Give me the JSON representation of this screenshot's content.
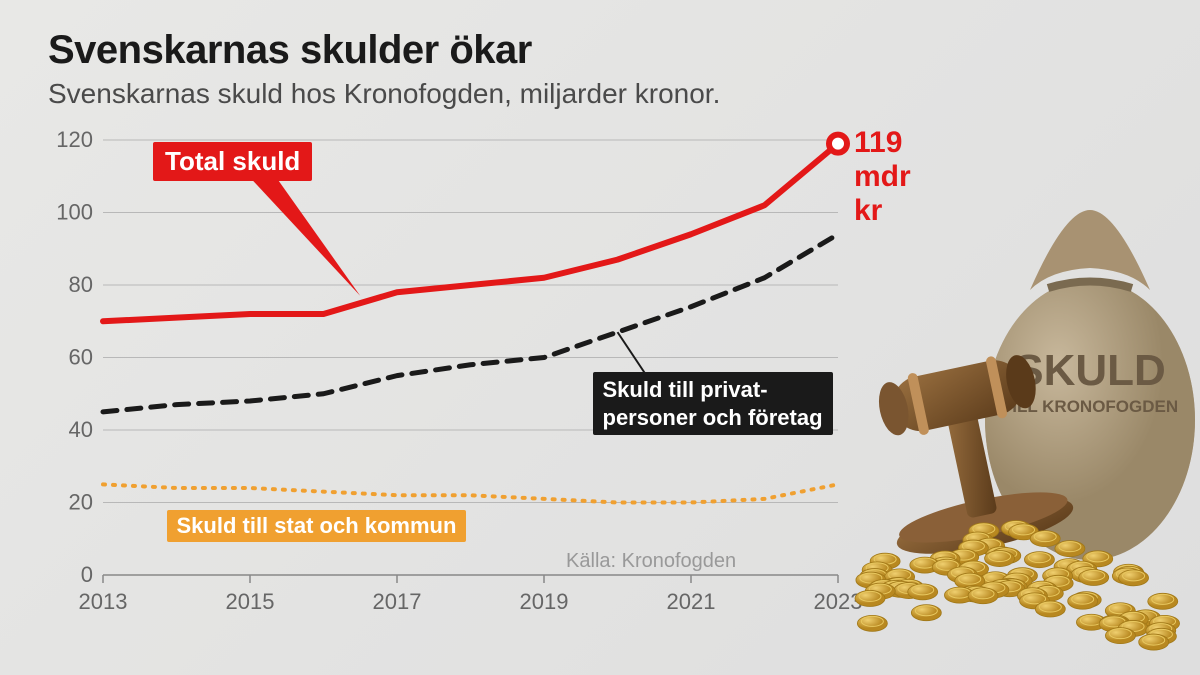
{
  "title": "Svenskarnas skulder ökar",
  "subtitle": "Svenskarnas skuld hos Kronofogden, miljarder kronor.",
  "source": "Källa: Kronofogden",
  "chart": {
    "type": "line",
    "xlim": [
      2013,
      2023
    ],
    "ylim": [
      0,
      120
    ],
    "xticks": [
      2013,
      2015,
      2017,
      2019,
      2021,
      2023
    ],
    "yticks": [
      0,
      20,
      40,
      60,
      80,
      100,
      120
    ],
    "grid_color": "#b8b8b8",
    "axis_color": "#888888",
    "label_color": "#666666",
    "label_fontsize": 22,
    "background": "transparent",
    "series": {
      "total": {
        "label": "Total skuld",
        "color": "#e31818",
        "line_width": 6,
        "style": "solid",
        "x": [
          2013,
          2014,
          2015,
          2016,
          2017,
          2018,
          2019,
          2020,
          2021,
          2022,
          2023
        ],
        "y": [
          70,
          71,
          72,
          72,
          78,
          80,
          82,
          87,
          94,
          102,
          119
        ],
        "callout_bg": "#e31818",
        "callout_fg": "#ffffff",
        "callout_fontsize": 26,
        "endpoint_label": "119 mdr kr",
        "endpoint_marker_color": "#e31818",
        "endpoint_marker_radius": 9
      },
      "private": {
        "label_line1": "Skuld till privat-",
        "label_line2": "personer och företag",
        "color": "#1a1a1a",
        "line_width": 5,
        "style": "dashed",
        "dash": "14 10",
        "x": [
          2013,
          2014,
          2015,
          2016,
          2017,
          2018,
          2019,
          2020,
          2021,
          2022,
          2023
        ],
        "y": [
          45,
          47,
          48,
          50,
          55,
          58,
          60,
          67,
          74,
          82,
          94
        ],
        "callout_bg": "#1a1a1a",
        "callout_fg": "#ffffff",
        "callout_fontsize": 22
      },
      "state": {
        "label": "Skuld till stat och kommun",
        "color": "#f0a030",
        "line_width": 4,
        "style": "dotted",
        "dash": "2 8",
        "x": [
          2013,
          2014,
          2015,
          2016,
          2017,
          2018,
          2019,
          2020,
          2021,
          2022,
          2023
        ],
        "y": [
          25,
          24,
          24,
          23,
          22,
          22,
          21,
          20,
          20,
          21,
          25
        ],
        "callout_bg": "#f0a030",
        "callout_fg": "#ffffff",
        "callout_fontsize": 22
      }
    }
  },
  "decor": {
    "bag_text_line1": "SKULD",
    "bag_text_line2": "TILL KRONOFOGDEN",
    "bag_color": "#b5a088",
    "bag_text_color": "#6b5a44",
    "gavel_color": "#6b4a2a",
    "coin_color": "#d4a838",
    "coin_highlight": "#f0d070"
  }
}
